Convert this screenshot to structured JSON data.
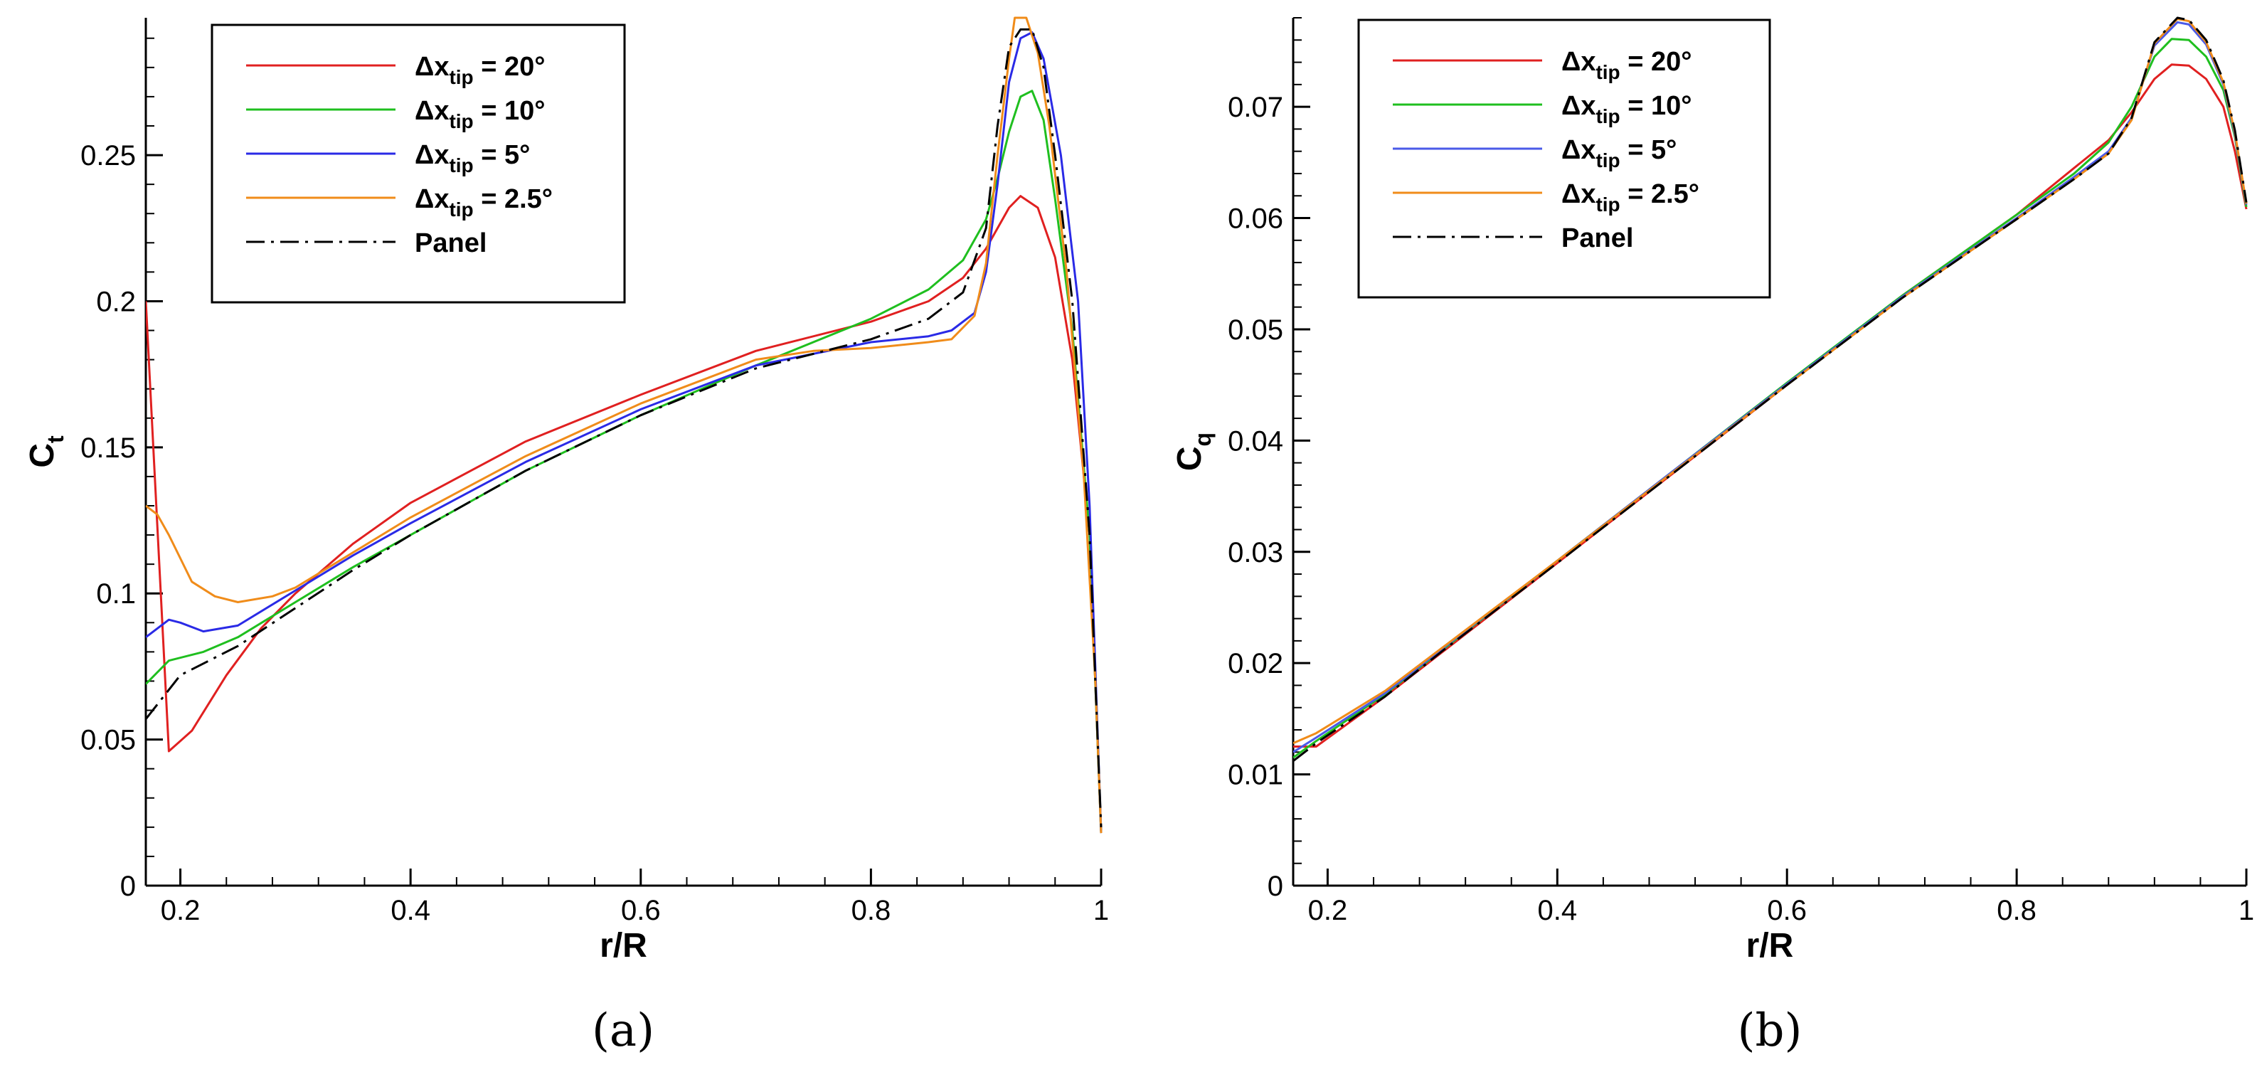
{
  "chart_data": [
    {
      "type": "line",
      "panel_label": "(a)",
      "xlabel": "r/R",
      "ylabel": {
        "main": "C",
        "sub": "t"
      },
      "xlim": [
        0.17,
        1.0
      ],
      "ylim": [
        0,
        0.297
      ],
      "xticks": [
        0.2,
        0.4,
        0.6,
        0.8,
        1
      ],
      "xtick_labels": [
        "0.2",
        "0.4",
        "0.6",
        "0.8",
        "1"
      ],
      "yticks": [
        0,
        0.05,
        0.1,
        0.15,
        0.2,
        0.25
      ],
      "ytick_labels": [
        "0",
        "0.05",
        "0.1",
        "0.15",
        "0.2",
        "0.25"
      ],
      "legend_position": "top-left",
      "series": [
        {
          "name": "Δx_tip = 20°",
          "label_main": "Δx",
          "label_sub": "tip",
          "label_rest": " = 20°",
          "color": "#e02020",
          "dash": "solid",
          "x": [
            0.17,
            0.19,
            0.21,
            0.24,
            0.27,
            0.3,
            0.35,
            0.4,
            0.5,
            0.6,
            0.7,
            0.8,
            0.85,
            0.88,
            0.9,
            0.92,
            0.93,
            0.945,
            0.96,
            0.975,
            0.99,
            1.0
          ],
          "y": [
            0.2,
            0.046,
            0.053,
            0.072,
            0.088,
            0.1,
            0.117,
            0.131,
            0.152,
            0.168,
            0.183,
            0.193,
            0.2,
            0.208,
            0.218,
            0.232,
            0.236,
            0.232,
            0.215,
            0.18,
            0.12,
            0.018
          ]
        },
        {
          "name": "Δx_tip = 10°",
          "label_main": "Δx",
          "label_sub": "tip",
          "label_rest": " = 10°",
          "color": "#1fbf1f",
          "dash": "solid",
          "x": [
            0.17,
            0.19,
            0.22,
            0.25,
            0.3,
            0.35,
            0.4,
            0.5,
            0.6,
            0.7,
            0.8,
            0.85,
            0.88,
            0.9,
            0.91,
            0.92,
            0.93,
            0.94,
            0.95,
            0.96,
            0.975,
            0.99,
            1.0
          ],
          "y": [
            0.069,
            0.077,
            0.08,
            0.085,
            0.097,
            0.109,
            0.12,
            0.142,
            0.161,
            0.178,
            0.194,
            0.204,
            0.214,
            0.228,
            0.242,
            0.258,
            0.27,
            0.272,
            0.262,
            0.235,
            0.19,
            0.12,
            0.018
          ]
        },
        {
          "name": "Δx_tip = 5°",
          "label_main": "Δx",
          "label_sub": "tip",
          "label_rest": " = 5°",
          "color": "#2a2ae6",
          "dash": "solid",
          "x": [
            0.17,
            0.19,
            0.2,
            0.22,
            0.25,
            0.3,
            0.35,
            0.4,
            0.5,
            0.6,
            0.7,
            0.8,
            0.85,
            0.87,
            0.89,
            0.9,
            0.91,
            0.92,
            0.93,
            0.94,
            0.95,
            0.965,
            0.98,
            0.99,
            1.0
          ],
          "y": [
            0.085,
            0.091,
            0.09,
            0.087,
            0.089,
            0.101,
            0.113,
            0.124,
            0.145,
            0.163,
            0.178,
            0.186,
            0.188,
            0.19,
            0.196,
            0.21,
            0.24,
            0.275,
            0.29,
            0.292,
            0.283,
            0.25,
            0.2,
            0.13,
            0.018
          ]
        },
        {
          "name": "Δx_tip = 2.5°",
          "label_main": "Δx",
          "label_sub": "tip",
          "label_rest": " = 2.5°",
          "color": "#f08c1a",
          "dash": "solid",
          "x": [
            0.17,
            0.18,
            0.19,
            0.21,
            0.23,
            0.25,
            0.28,
            0.3,
            0.35,
            0.4,
            0.5,
            0.6,
            0.7,
            0.75,
            0.8,
            0.85,
            0.87,
            0.89,
            0.9,
            0.91,
            0.92,
            0.925,
            0.935,
            0.945,
            0.955,
            0.97,
            0.985,
            0.995,
            1.0
          ],
          "y": [
            0.13,
            0.127,
            0.12,
            0.104,
            0.099,
            0.097,
            0.099,
            0.102,
            0.114,
            0.126,
            0.147,
            0.165,
            0.18,
            0.183,
            0.184,
            0.186,
            0.187,
            0.195,
            0.213,
            0.25,
            0.283,
            0.297,
            0.297,
            0.285,
            0.26,
            0.21,
            0.14,
            0.07,
            0.018
          ]
        },
        {
          "name": "Panel",
          "label_main": "Panel",
          "label_sub": "",
          "label_rest": "",
          "color": "#000000",
          "dash": "dashdot",
          "x": [
            0.17,
            0.2,
            0.25,
            0.3,
            0.35,
            0.4,
            0.5,
            0.6,
            0.7,
            0.8,
            0.85,
            0.88,
            0.9,
            0.91,
            0.92,
            0.93,
            0.94,
            0.95,
            0.96,
            0.975,
            0.99,
            1.0
          ],
          "y": [
            0.057,
            0.072,
            0.082,
            0.095,
            0.108,
            0.12,
            0.142,
            0.161,
            0.177,
            0.187,
            0.194,
            0.203,
            0.225,
            0.26,
            0.287,
            0.293,
            0.293,
            0.28,
            0.25,
            0.2,
            0.12,
            0.02
          ]
        }
      ]
    },
    {
      "type": "line",
      "panel_label": "(b)",
      "xlabel": "r/R",
      "ylabel": {
        "main": "C",
        "sub": "q"
      },
      "xlim": [
        0.17,
        1.0
      ],
      "ylim": [
        0,
        0.078
      ],
      "xticks": [
        0.2,
        0.4,
        0.6,
        0.8,
        1
      ],
      "xtick_labels": [
        "0.2",
        "0.4",
        "0.6",
        "0.8",
        "1"
      ],
      "yticks": [
        0,
        0.01,
        0.02,
        0.03,
        0.04,
        0.05,
        0.06,
        0.07
      ],
      "ytick_labels": [
        "0",
        "0.01",
        "0.02",
        "0.03",
        "0.04",
        "0.05",
        "0.06",
        "0.07"
      ],
      "legend_position": "top-left",
      "series": [
        {
          "name": "Δx_tip = 20°",
          "label_main": "Δx",
          "label_sub": "tip",
          "label_rest": " = 20°",
          "color": "#e02020",
          "dash": "solid",
          "x": [
            0.17,
            0.19,
            0.25,
            0.3,
            0.4,
            0.5,
            0.6,
            0.7,
            0.8,
            0.85,
            0.88,
            0.9,
            0.92,
            0.935,
            0.95,
            0.965,
            0.98,
            0.99,
            1.0
          ],
          "y": [
            0.0125,
            0.0125,
            0.017,
            0.021,
            0.029,
            0.037,
            0.045,
            0.053,
            0.0603,
            0.0645,
            0.067,
            0.0695,
            0.0725,
            0.0738,
            0.0737,
            0.0725,
            0.07,
            0.066,
            0.0608
          ]
        },
        {
          "name": "Δx_tip = 10°",
          "label_main": "Δx",
          "label_sub": "tip",
          "label_rest": " = 10°",
          "color": "#1fbf1f",
          "dash": "solid",
          "x": [
            0.17,
            0.19,
            0.25,
            0.3,
            0.4,
            0.5,
            0.6,
            0.7,
            0.8,
            0.85,
            0.88,
            0.9,
            0.92,
            0.935,
            0.95,
            0.965,
            0.98,
            0.99,
            1.0
          ],
          "y": [
            0.0115,
            0.013,
            0.0172,
            0.0212,
            0.0292,
            0.0372,
            0.0452,
            0.053,
            0.0603,
            0.064,
            0.0668,
            0.07,
            0.0745,
            0.0761,
            0.076,
            0.0745,
            0.0715,
            0.0673,
            0.061
          ]
        },
        {
          "name": "Δx_tip = 5°",
          "label_main": "Δx",
          "label_sub": "tip",
          "label_rest": " = 5°",
          "color": "#4a5ae8",
          "dash": "solid",
          "x": [
            0.17,
            0.19,
            0.25,
            0.3,
            0.4,
            0.5,
            0.6,
            0.7,
            0.8,
            0.85,
            0.88,
            0.9,
            0.92,
            0.94,
            0.95,
            0.965,
            0.98,
            0.99,
            1.0
          ],
          "y": [
            0.012,
            0.0133,
            0.0173,
            0.0213,
            0.0292,
            0.0372,
            0.0451,
            0.0529,
            0.06,
            0.0637,
            0.066,
            0.069,
            0.0755,
            0.0776,
            0.0774,
            0.0756,
            0.072,
            0.0675,
            0.0612
          ]
        },
        {
          "name": "Δx_tip = 2.5°",
          "label_main": "Δx",
          "label_sub": "tip",
          "label_rest": " = 2.5°",
          "color": "#f08c1a",
          "dash": "solid",
          "x": [
            0.17,
            0.19,
            0.25,
            0.3,
            0.4,
            0.5,
            0.6,
            0.7,
            0.8,
            0.85,
            0.88,
            0.9,
            0.92,
            0.94,
            0.95,
            0.965,
            0.98,
            0.99,
            1.0
          ],
          "y": [
            0.0128,
            0.0137,
            0.0175,
            0.0214,
            0.0292,
            0.0371,
            0.045,
            0.0528,
            0.0599,
            0.0635,
            0.0658,
            0.0688,
            0.0757,
            0.0779,
            0.0777,
            0.0758,
            0.0722,
            0.0677,
            0.0613
          ]
        },
        {
          "name": "Panel",
          "label_main": "Panel",
          "label_sub": "",
          "label_rest": "",
          "color": "#000000",
          "dash": "dashdot",
          "x": [
            0.17,
            0.19,
            0.25,
            0.3,
            0.4,
            0.5,
            0.6,
            0.7,
            0.8,
            0.85,
            0.88,
            0.9,
            0.92,
            0.94,
            0.95,
            0.965,
            0.98,
            0.99,
            1.0
          ],
          "y": [
            0.0112,
            0.0128,
            0.017,
            0.0211,
            0.029,
            0.037,
            0.045,
            0.0528,
            0.0599,
            0.0635,
            0.0658,
            0.069,
            0.0758,
            0.078,
            0.0778,
            0.076,
            0.0724,
            0.0679,
            0.0614
          ]
        }
      ]
    }
  ]
}
